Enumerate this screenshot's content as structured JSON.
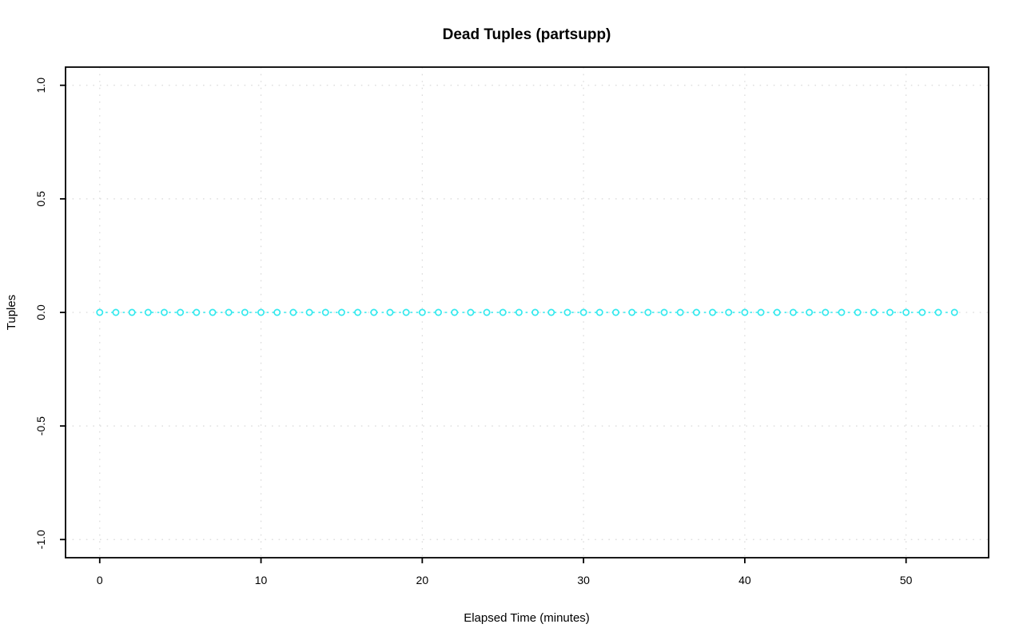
{
  "chart_data": {
    "type": "scatter",
    "title": "Dead Tuples (partsupp)",
    "xlabel": "Elapsed Time (minutes)",
    "ylabel": "Tuples",
    "x": [
      0,
      1,
      2,
      3,
      4,
      5,
      6,
      7,
      8,
      9,
      10,
      11,
      12,
      13,
      14,
      15,
      16,
      17,
      18,
      19,
      20,
      21,
      22,
      23,
      24,
      25,
      26,
      27,
      28,
      29,
      30,
      31,
      32,
      33,
      34,
      35,
      36,
      37,
      38,
      39,
      40,
      41,
      42,
      43,
      44,
      45,
      46,
      47,
      48,
      49,
      50,
      51,
      52,
      53
    ],
    "y": [
      0,
      0,
      0,
      0,
      0,
      0,
      0,
      0,
      0,
      0,
      0,
      0,
      0,
      0,
      0,
      0,
      0,
      0,
      0,
      0,
      0,
      0,
      0,
      0,
      0,
      0,
      0,
      0,
      0,
      0,
      0,
      0,
      0,
      0,
      0,
      0,
      0,
      0,
      0,
      0,
      0,
      0,
      0,
      0,
      0,
      0,
      0,
      0,
      0,
      0,
      0,
      0,
      0,
      0
    ],
    "xlim": [
      0,
      53
    ],
    "ylim": [
      -1.0,
      1.0
    ],
    "xticks": [
      0,
      10,
      20,
      30,
      40,
      50
    ],
    "xtick_labels": [
      "0",
      "10",
      "20",
      "30",
      "40",
      "50"
    ],
    "yticks": [
      -1.0,
      -0.5,
      0.0,
      0.5,
      1.0
    ],
    "ytick_labels": [
      "-1.0",
      "-0.5",
      "0.0",
      "0.5",
      "1.0"
    ],
    "grid": "dotted-at-ticks",
    "legend": "none",
    "marker": "open-circle",
    "line_style": "dotted",
    "series_color": "#33e9ee",
    "grid_color": "#d9d9d9",
    "axis_color": "#000000",
    "background_color": "#ffffff"
  }
}
